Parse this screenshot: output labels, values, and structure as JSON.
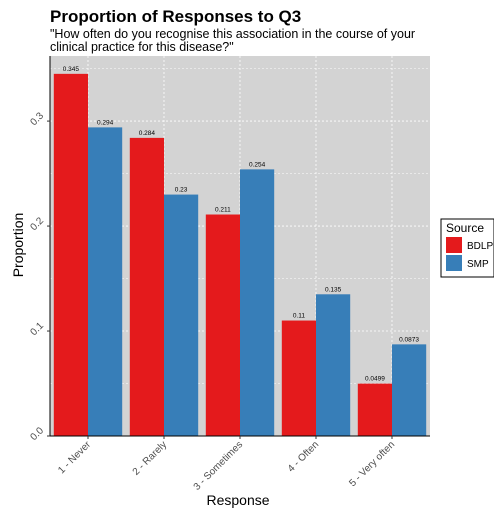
{
  "chart_data": {
    "type": "bar",
    "title": "Proportion of Responses to Q3",
    "subtitle": [
      "\"How often do you recognise this association in the course of your",
      "clinical practice for this disease?\""
    ],
    "xlabel": "Response",
    "ylabel": "Proportion",
    "categories": [
      "1 - Never",
      "2 - Rarely",
      "3 - Sometimes",
      "4 - Often",
      "5 - Very often"
    ],
    "series": [
      {
        "name": "BDLP",
        "color": "#e41a1c",
        "values": [
          0.345,
          0.284,
          0.211,
          0.11,
          0.0499
        ],
        "labels": [
          "0.345",
          "0.284",
          "0.211",
          "0.11",
          "0.0499"
        ]
      },
      {
        "name": "SMP",
        "color": "#377eb8",
        "values": [
          0.294,
          0.23,
          0.254,
          0.135,
          0.0873
        ],
        "labels": [
          "0.294",
          "0.23",
          "0.254",
          "0.135",
          "0.0873"
        ]
      }
    ],
    "ylim": [
      0,
      0.362
    ],
    "yticks": [
      0,
      0.1,
      0.2,
      0.3
    ],
    "ytick_labels": [
      "0.0",
      "0.1",
      "0.2",
      "0.3"
    ],
    "grid": true,
    "panel_background": "#d3d3d3",
    "legend": {
      "title": "Source",
      "position": "right"
    }
  }
}
